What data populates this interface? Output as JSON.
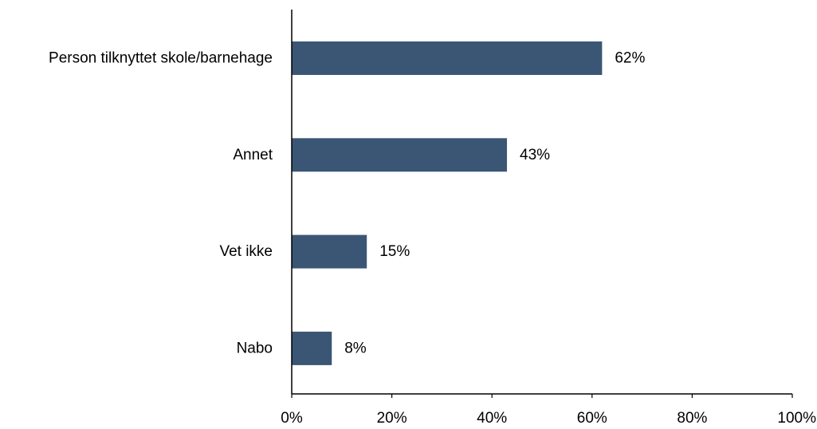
{
  "chart_data": {
    "type": "bar",
    "orientation": "horizontal",
    "categories": [
      "Person tilknyttet skole/barnehage",
      "Annet",
      "Vet ikke",
      "Nabo"
    ],
    "values": [
      62,
      43,
      15,
      8
    ],
    "value_labels": [
      "62%",
      "43%",
      "15%",
      "8%"
    ],
    "xlim": [
      0,
      100
    ],
    "xticks": [
      0,
      20,
      40,
      60,
      80,
      100
    ],
    "xtick_labels": [
      "0%",
      "20%",
      "40%",
      "60%",
      "80%",
      "100%"
    ],
    "grid": false,
    "bar_color": "#3b5675"
  }
}
